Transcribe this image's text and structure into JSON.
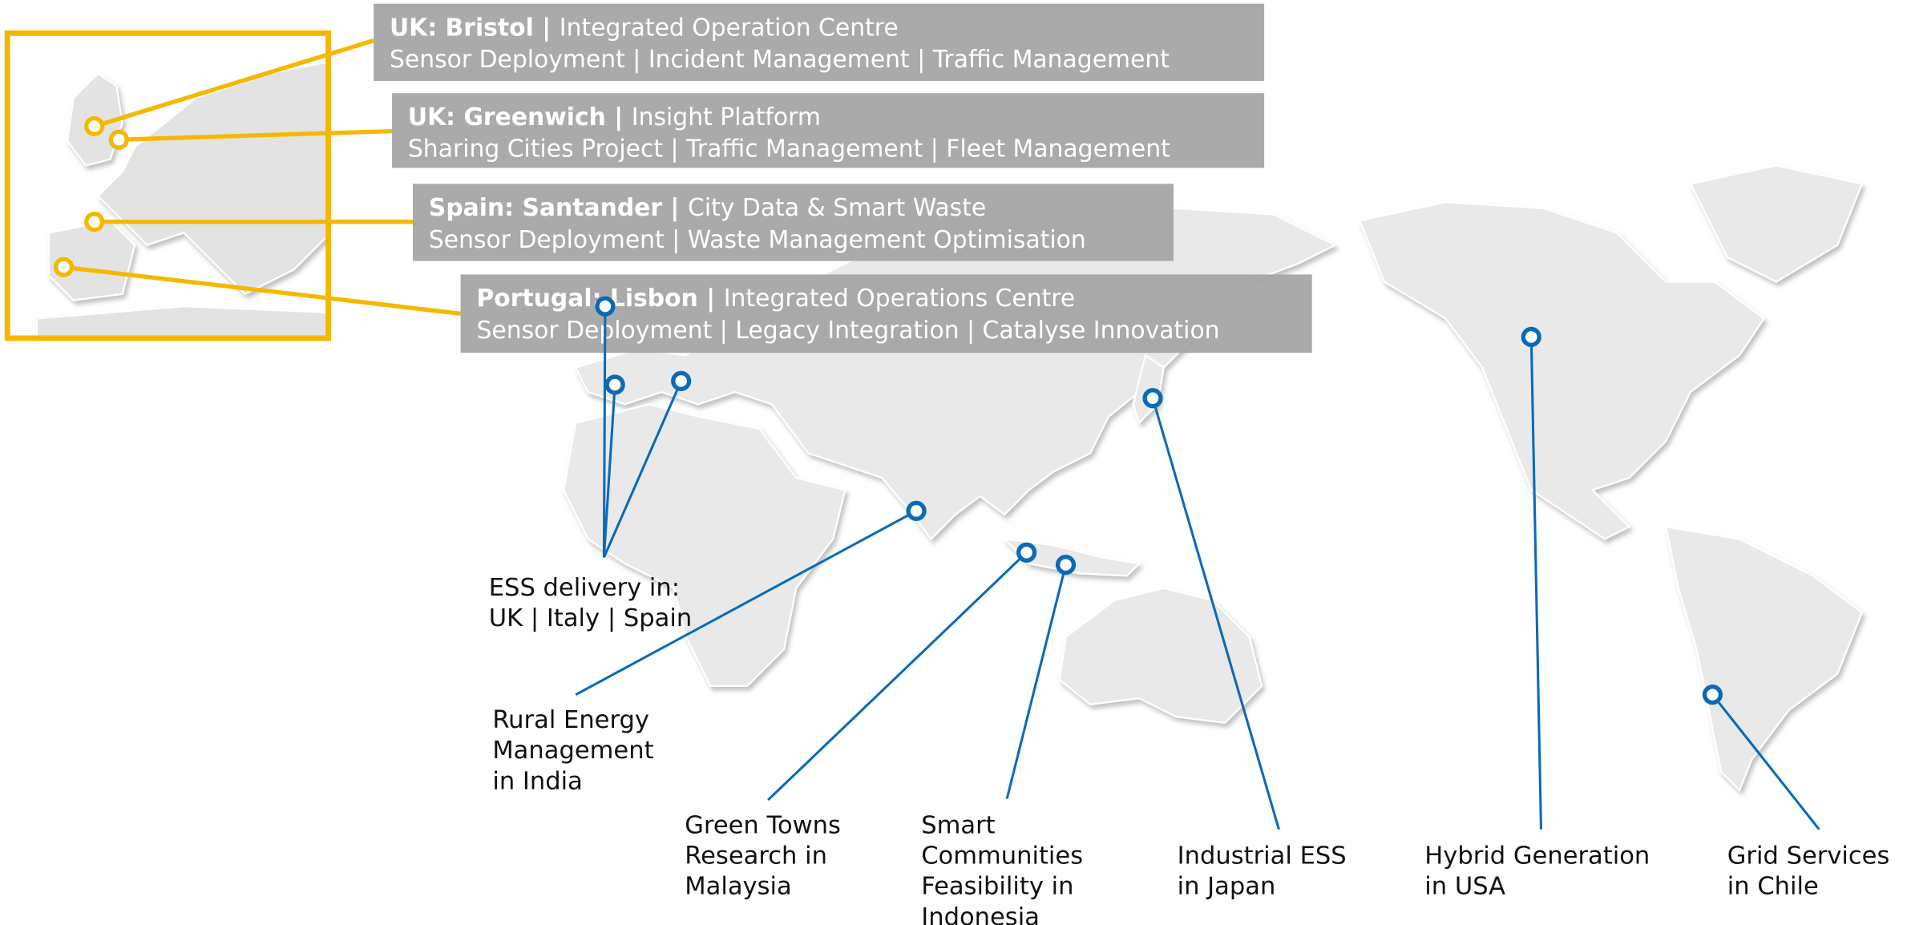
{
  "europe_projects": [
    {
      "title": "UK: Bristol |",
      "subtitle": "Integrated Operation Centre",
      "detail": "Sensor Deployment | Incident Management | Traffic Management"
    },
    {
      "title": "UK: Greenwich |",
      "subtitle": "Insight Platform",
      "detail": "Sharing Cities Project | Traffic Management  | Fleet Management"
    },
    {
      "title": "Spain: Santander |",
      "subtitle": "City Data & Smart Waste",
      "detail": "Sensor Deployment | Waste Management Optimisation"
    },
    {
      "title": "Portugal: Lisbon |",
      "subtitle": "Integrated Operations Centre",
      "detail": "Sensor Deployment | Legacy Integration | Catalyse Innovation"
    }
  ],
  "global_projects": [
    {
      "lines": [
        "ESS delivery in:",
        "UK | Italy | Spain"
      ]
    },
    {
      "lines": [
        "Rural Energy",
        "Management",
        "in India"
      ]
    },
    {
      "lines": [
        "Green Towns",
        "Research in",
        "Malaysia"
      ]
    },
    {
      "lines": [
        "Smart",
        "Communities",
        "Feasibility in",
        "Indonesia"
      ]
    },
    {
      "lines": [
        "Industrial ESS",
        "in Japan"
      ]
    },
    {
      "lines": [
        "Hybrid Generation",
        "in USA"
      ]
    },
    {
      "lines": [
        "Grid Services",
        "in Chile"
      ]
    }
  ]
}
